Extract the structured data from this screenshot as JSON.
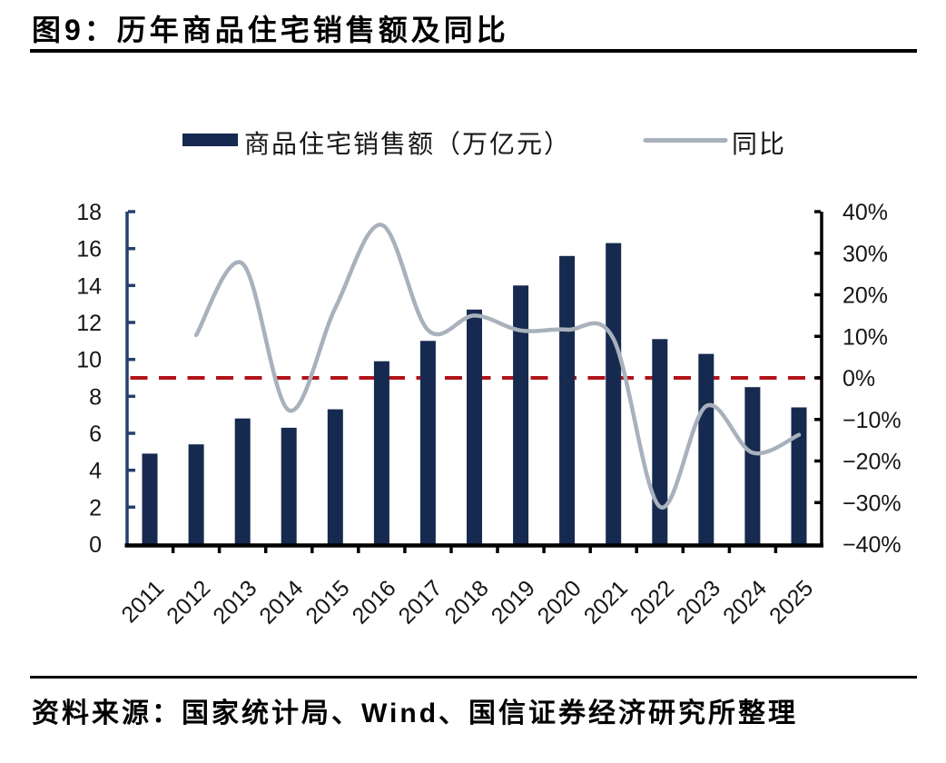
{
  "page": {
    "title": "图9：历年商品住宅销售额及同比",
    "source": "资料来源：国家统计局、Wind、国信证券经济研究所整理"
  },
  "chart_data": {
    "type": "bar",
    "subtype": "combo-bar-line-dual-axis",
    "title": "图9：历年商品住宅销售额及同比",
    "categories": [
      "2011",
      "2012",
      "2013",
      "2014",
      "2015",
      "2016",
      "2017",
      "2018",
      "2019",
      "2020",
      "2021",
      "2022",
      "2023",
      "2024",
      "2025"
    ],
    "series": [
      {
        "name": "商品住宅销售额（万亿元）",
        "type": "bar",
        "axis": "left",
        "color": "#162a4f",
        "values": [
          4.9,
          5.4,
          6.8,
          6.3,
          7.3,
          9.9,
          11.0,
          12.7,
          14.0,
          15.6,
          16.3,
          11.1,
          10.3,
          8.5,
          7.4
        ]
      },
      {
        "name": "同比",
        "type": "line",
        "axis": "right",
        "color": "#a8b1bc",
        "values": [
          null,
          10.3,
          27.5,
          -7.8,
          16.8,
          36.8,
          11.5,
          15.0,
          11.4,
          11.6,
          9.4,
          -31.0,
          -6.8,
          -18.0,
          -13.7
        ]
      }
    ],
    "left_axis": {
      "min": 0,
      "max": 18,
      "step": 2,
      "tick_labels": [
        "18",
        "16",
        "14",
        "12",
        "10",
        "8",
        "6",
        "4",
        "2",
        "0"
      ],
      "color": "#24406b"
    },
    "right_axis": {
      "min": -40,
      "max": 40,
      "step": 10,
      "unit": "%",
      "tick_labels": [
        "40%",
        "30%",
        "20%",
        "10%",
        "0%",
        "−10%",
        "−20%",
        "−30%",
        "−40%"
      ],
      "color": "#000000"
    },
    "zero_line": {
      "value_pct": 0,
      "color": "#b2131b",
      "style": "dashed"
    },
    "legend_position": "top",
    "grid": false,
    "source": "资料来源：国家统计局、Wind、国信证券经济研究所整理"
  }
}
